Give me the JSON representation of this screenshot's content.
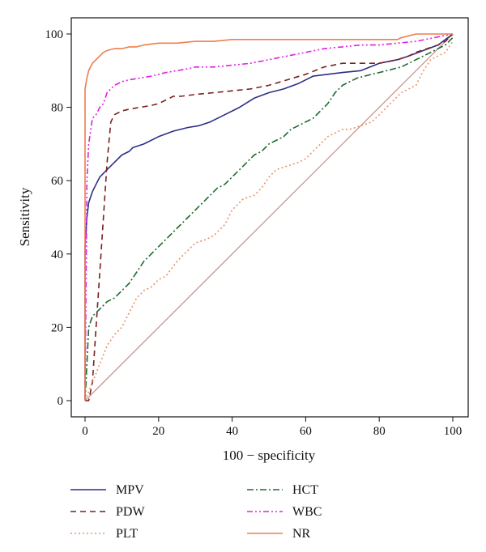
{
  "chart_data": {
    "type": "line",
    "xlabel": "100 − specificity",
    "ylabel": "Sensitivity",
    "xlim": [
      0,
      100
    ],
    "ylim": [
      0,
      100
    ],
    "x_ticks": [
      0,
      20,
      40,
      60,
      80,
      100
    ],
    "y_ticks": [
      0,
      20,
      40,
      60,
      80,
      100
    ],
    "grid": false,
    "legend_position": "bottom",
    "reference_line": {
      "x": [
        0,
        100
      ],
      "y": [
        0,
        100
      ],
      "color": "#c9958f"
    },
    "series": [
      {
        "name": "MPV",
        "color": "#2b2f86",
        "dash": "",
        "x": [
          0,
          0,
          0.5,
          1,
          2,
          3,
          4,
          6,
          8,
          10,
          12,
          13,
          16,
          20,
          24,
          28,
          31,
          34,
          38,
          42,
          46,
          50,
          54,
          58,
          62,
          66,
          70,
          75,
          80,
          85,
          88,
          92,
          96,
          100
        ],
        "y": [
          0,
          42,
          50,
          54,
          57,
          59,
          61,
          63,
          65,
          67,
          68,
          69,
          70,
          72,
          73.5,
          74.5,
          75,
          76,
          78,
          80,
          82.5,
          84,
          85,
          86.5,
          88.5,
          89,
          89.5,
          90,
          92,
          93,
          94,
          95.5,
          97,
          100
        ]
      },
      {
        "name": "PDW",
        "color": "#7a1f1f",
        "dash": "7,5",
        "x": [
          0,
          1,
          2,
          3,
          4,
          5,
          6,
          7,
          8,
          10,
          12,
          15,
          18,
          20,
          22,
          24,
          26,
          30,
          35,
          40,
          45,
          50,
          55,
          60,
          65,
          70,
          75,
          80,
          85,
          88,
          90,
          93,
          96,
          98,
          100
        ],
        "y": [
          0,
          0,
          5,
          20,
          35,
          50,
          65,
          76,
          78,
          79,
          79.5,
          80,
          80.5,
          81,
          82,
          83,
          83,
          83.5,
          84,
          84.5,
          85,
          86,
          87.5,
          89,
          91,
          92,
          92,
          92,
          93,
          94,
          95,
          96,
          97,
          98,
          100
        ]
      },
      {
        "name": "PLT",
        "color": "#e8926a",
        "dash": "2,3",
        "x": [
          0,
          2,
          4,
          6,
          8,
          10,
          12,
          14,
          16,
          18,
          20,
          22,
          25,
          28,
          30,
          33,
          35,
          38,
          40,
          43,
          46,
          48,
          50,
          52,
          55,
          58,
          60,
          62,
          64,
          66,
          68,
          70,
          72,
          75,
          78,
          80,
          82,
          84,
          86,
          88,
          90,
          92,
          94,
          96,
          98,
          100
        ],
        "y": [
          0,
          5,
          10,
          15,
          18,
          20,
          24,
          28,
          30,
          31,
          33,
          34,
          38,
          41,
          43,
          44,
          45,
          48,
          52,
          55,
          56,
          58,
          61,
          63,
          64,
          65,
          66,
          68,
          70,
          72,
          73,
          74,
          74,
          75,
          76,
          78,
          80,
          82,
          84,
          85,
          86,
          90,
          93,
          94,
          95,
          98
        ]
      },
      {
        "name": "HCT",
        "color": "#1e6a2e",
        "dash": "8,3,2,3",
        "x": [
          0,
          0.5,
          1,
          2,
          4,
          6,
          8,
          10,
          12,
          14,
          16,
          18,
          20,
          22,
          24,
          26,
          28,
          30,
          32,
          34,
          36,
          38,
          40,
          42,
          44,
          46,
          48,
          50,
          52,
          54,
          56,
          58,
          60,
          62,
          64,
          66,
          68,
          70,
          72,
          74,
          76,
          78,
          80,
          82,
          84,
          86,
          88,
          90,
          92,
          94,
          96,
          98,
          100
        ],
        "y": [
          0,
          10,
          20,
          23,
          25,
          27,
          28,
          30,
          32,
          35,
          38,
          40,
          42,
          44,
          46,
          48,
          50,
          52,
          54,
          56,
          58,
          59,
          61,
          63,
          65,
          67,
          68,
          70,
          71,
          72,
          74,
          75,
          76,
          77,
          79,
          81,
          84,
          86,
          87,
          88,
          88.5,
          89,
          89.5,
          90,
          90.5,
          91,
          92,
          93,
          94,
          95,
          96,
          97,
          99
        ]
      },
      {
        "name": "WBC",
        "color": "#e020e0",
        "dash": "7,3,2,3,2,3",
        "x": [
          0,
          0.5,
          1,
          2,
          3,
          4,
          5,
          6,
          7,
          8,
          10,
          12,
          15,
          18,
          20,
          22,
          25,
          28,
          30,
          35,
          40,
          45,
          50,
          55,
          60,
          65,
          70,
          75,
          80,
          85,
          90,
          95,
          100
        ],
        "y": [
          0,
          60,
          70,
          77,
          78,
          80,
          81,
          84,
          85,
          86,
          87,
          87.5,
          88,
          88.5,
          89,
          89.5,
          90,
          90.5,
          91,
          91,
          91.5,
          92,
          93,
          94,
          95,
          96,
          96.5,
          97,
          97,
          97.5,
          98,
          99,
          100
        ]
      },
      {
        "name": "NR",
        "color": "#f07d4e",
        "dash": "",
        "x": [
          0,
          0,
          0.5,
          1,
          1.5,
          2,
          3,
          4,
          5,
          6,
          8,
          10,
          12,
          14,
          16,
          20,
          25,
          30,
          35,
          40,
          50,
          60,
          70,
          80,
          85,
          86,
          88,
          90,
          95,
          100
        ],
        "y": [
          0,
          85,
          88,
          90,
          91,
          92,
          93,
          94,
          95,
          95.5,
          96,
          96,
          96.5,
          96.5,
          97,
          97.5,
          97.5,
          98,
          98,
          98.5,
          98.5,
          98.5,
          98.5,
          98.5,
          98.5,
          99,
          99.5,
          100,
          100,
          100
        ]
      }
    ]
  }
}
